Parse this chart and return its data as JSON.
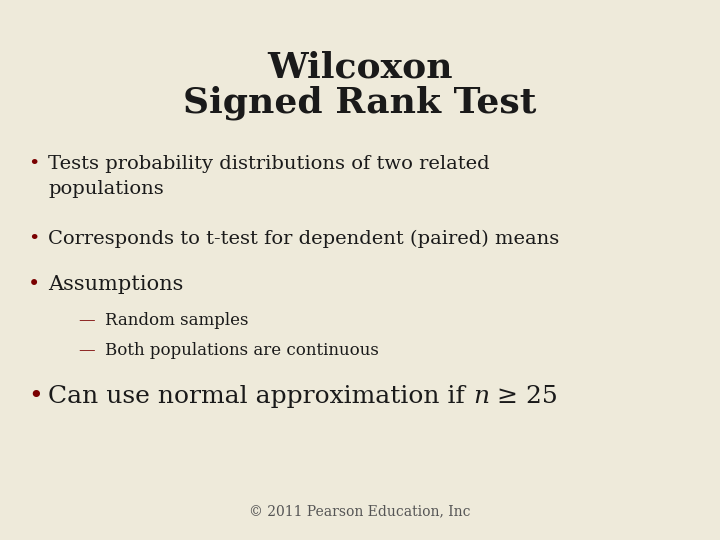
{
  "background_color": "#eeeada",
  "title_line1": "Wilcoxon",
  "title_line2": "Signed Rank Test",
  "title_color": "#1a1a1a",
  "title_fontsize": 26,
  "title_fontweight": "bold",
  "bullet_color": "#7a0000",
  "text_color": "#1a1a1a",
  "bullet_fontsize": 14,
  "assumptions_fontsize": 15,
  "sub_bullet_fontsize": 12,
  "last_bullet_fontsize": 18,
  "footer_text": "© 2011 Pearson Education, Inc",
  "footer_fontsize": 10,
  "footer_color": "#555555",
  "bullet1": "Tests probability distributions of two related\npopulations",
  "bullet2": "Corresponds to t-test for dependent (paired) means",
  "bullet3": "Assumptions",
  "sub1": "Random samples",
  "sub2": "Both populations are continuous",
  "last_regular": "Can use normal approximation if ",
  "last_italic": "n",
  "last_end": " ≥ 25"
}
